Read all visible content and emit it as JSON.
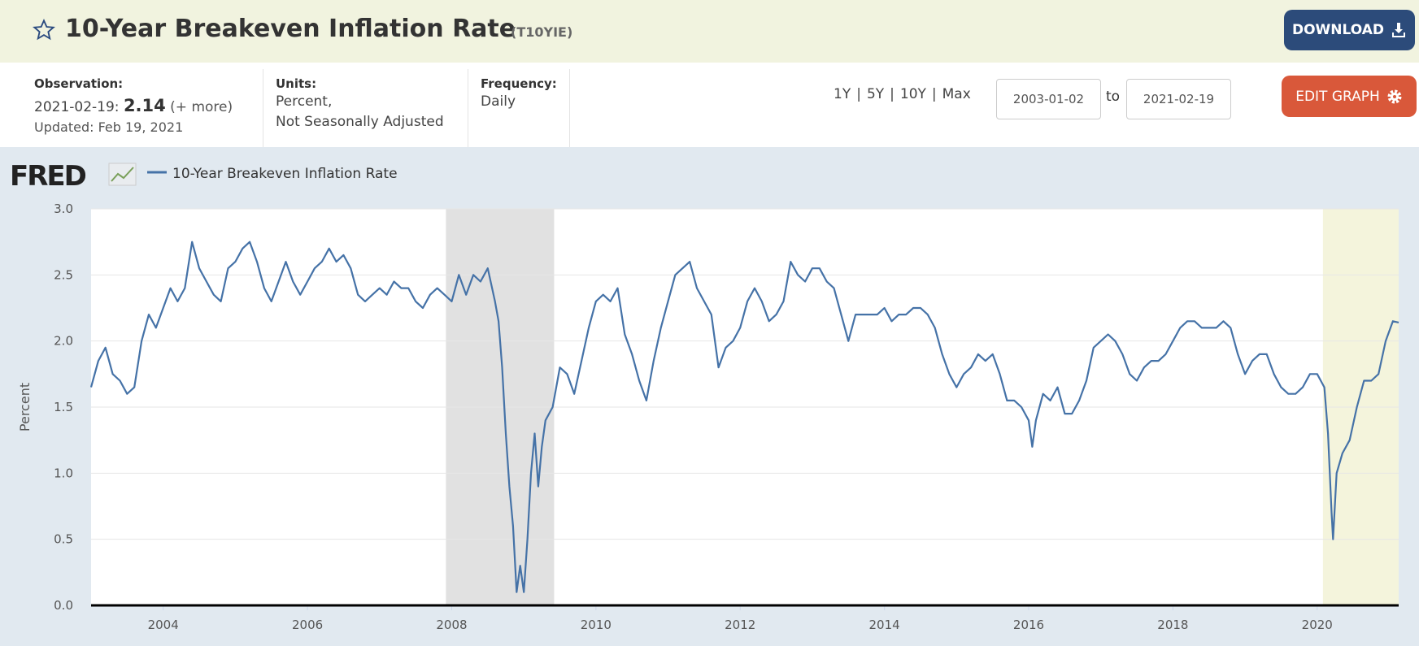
{
  "header": {
    "title": "10-Year Breakeven Inflation Rate",
    "series_id": "(T10YIE)",
    "download": "DOWNLOAD"
  },
  "observation": {
    "label": "Observation:",
    "date": "2021-02-19:",
    "value": 2.14,
    "more": "(+ more)",
    "updated": "Updated: Feb 19, 2021"
  },
  "units": {
    "label": "Units:",
    "line1": "Percent,",
    "line2": "Not Seasonally Adjusted"
  },
  "frequency": {
    "label": "Frequency:",
    "value": "Daily"
  },
  "range": {
    "buttons": [
      "1Y",
      "5Y",
      "10Y",
      "Max"
    ],
    "separator": "|",
    "start": "2003-01-02",
    "to": "to",
    "end": "2021-02-19"
  },
  "edit_graph": "EDIT GRAPH",
  "logo": "FRED",
  "chart_data": {
    "type": "line",
    "y_label": "Percent",
    "xlim": [
      2003.0,
      2021.13
    ],
    "xticks": [
      2004,
      2006,
      2008,
      2010,
      2012,
      2014,
      2016,
      2018,
      2020
    ],
    "ylim": [
      0,
      3
    ],
    "yticks": [
      {
        "value": 0,
        "label": "0.0"
      },
      {
        "value": 0.5,
        "label": "0.5"
      },
      {
        "value": 1,
        "label": "1.0"
      },
      {
        "value": 1.5,
        "label": "1.5"
      },
      {
        "value": 2,
        "label": "2.0"
      },
      {
        "value": 2.5,
        "label": "2.5"
      },
      {
        "value": 3,
        "label": "3.0"
      }
    ],
    "grid": true,
    "recessions": [
      {
        "start": 2007.92,
        "end": 2009.42,
        "color": "#e1e1e1"
      },
      {
        "start": 2020.08,
        "end": 2021.13,
        "color": "#f4f4dc"
      }
    ],
    "series": [
      {
        "name": "10-Year Breakeven Inflation Rate",
        "color": "#4572a7",
        "x": [
          2003.0,
          2003.1,
          2003.2,
          2003.3,
          2003.4,
          2003.5,
          2003.6,
          2003.7,
          2003.8,
          2003.9,
          2004.0,
          2004.1,
          2004.2,
          2004.3,
          2004.4,
          2004.5,
          2004.6,
          2004.7,
          2004.8,
          2004.9,
          2005.0,
          2005.1,
          2005.2,
          2005.3,
          2005.4,
          2005.5,
          2005.6,
          2005.7,
          2005.8,
          2005.9,
          2006.0,
          2006.1,
          2006.2,
          2006.3,
          2006.4,
          2006.5,
          2006.6,
          2006.7,
          2006.8,
          2006.9,
          2007.0,
          2007.1,
          2007.2,
          2007.3,
          2007.4,
          2007.5,
          2007.6,
          2007.7,
          2007.8,
          2007.9,
          2008.0,
          2008.1,
          2008.2,
          2008.3,
          2008.4,
          2008.5,
          2008.6,
          2008.65,
          2008.7,
          2008.75,
          2008.8,
          2008.85,
          2008.9,
          2008.95,
          2009.0,
          2009.05,
          2009.1,
          2009.15,
          2009.2,
          2009.25,
          2009.3,
          2009.4,
          2009.5,
          2009.6,
          2009.7,
          2009.8,
          2009.9,
          2010.0,
          2010.1,
          2010.2,
          2010.3,
          2010.4,
          2010.5,
          2010.6,
          2010.7,
          2010.8,
          2010.9,
          2011.0,
          2011.1,
          2011.2,
          2011.3,
          2011.4,
          2011.5,
          2011.6,
          2011.7,
          2011.8,
          2011.9,
          2012.0,
          2012.1,
          2012.2,
          2012.3,
          2012.4,
          2012.5,
          2012.6,
          2012.7,
          2012.8,
          2012.9,
          2013.0,
          2013.1,
          2013.2,
          2013.3,
          2013.4,
          2013.5,
          2013.6,
          2013.7,
          2013.8,
          2013.9,
          2014.0,
          2014.1,
          2014.2,
          2014.3,
          2014.4,
          2014.5,
          2014.6,
          2014.7,
          2014.8,
          2014.9,
          2015.0,
          2015.1,
          2015.2,
          2015.3,
          2015.4,
          2015.5,
          2015.6,
          2015.7,
          2015.8,
          2015.9,
          2016.0,
          2016.05,
          2016.1,
          2016.2,
          2016.3,
          2016.4,
          2016.5,
          2016.6,
          2016.7,
          2016.8,
          2016.9,
          2017.0,
          2017.1,
          2017.2,
          2017.3,
          2017.4,
          2017.5,
          2017.6,
          2017.7,
          2017.8,
          2017.9,
          2018.0,
          2018.1,
          2018.2,
          2018.3,
          2018.4,
          2018.5,
          2018.6,
          2018.7,
          2018.8,
          2018.9,
          2019.0,
          2019.1,
          2019.2,
          2019.3,
          2019.4,
          2019.5,
          2019.6,
          2019.7,
          2019.8,
          2019.9,
          2020.0,
          2020.1,
          2020.15,
          2020.2,
          2020.22,
          2020.27,
          2020.35,
          2020.45,
          2020.55,
          2020.65,
          2020.75,
          2020.85,
          2020.95,
          2021.05,
          2021.13
        ],
        "values": [
          1.65,
          1.85,
          1.95,
          1.75,
          1.7,
          1.6,
          1.65,
          2.0,
          2.2,
          2.1,
          2.25,
          2.4,
          2.3,
          2.4,
          2.75,
          2.55,
          2.45,
          2.35,
          2.3,
          2.55,
          2.6,
          2.7,
          2.75,
          2.6,
          2.4,
          2.3,
          2.45,
          2.6,
          2.45,
          2.35,
          2.45,
          2.55,
          2.6,
          2.7,
          2.6,
          2.65,
          2.55,
          2.35,
          2.3,
          2.35,
          2.4,
          2.35,
          2.45,
          2.4,
          2.4,
          2.3,
          2.25,
          2.35,
          2.4,
          2.35,
          2.3,
          2.5,
          2.35,
          2.5,
          2.45,
          2.55,
          2.3,
          2.15,
          1.8,
          1.3,
          0.9,
          0.6,
          0.1,
          0.3,
          0.1,
          0.5,
          1.0,
          1.3,
          0.9,
          1.2,
          1.4,
          1.5,
          1.8,
          1.75,
          1.6,
          1.85,
          2.1,
          2.3,
          2.35,
          2.3,
          2.4,
          2.05,
          1.9,
          1.7,
          1.55,
          1.85,
          2.1,
          2.3,
          2.5,
          2.55,
          2.6,
          2.4,
          2.3,
          2.2,
          1.8,
          1.95,
          2.0,
          2.1,
          2.3,
          2.4,
          2.3,
          2.15,
          2.2,
          2.3,
          2.6,
          2.5,
          2.45,
          2.55,
          2.55,
          2.45,
          2.4,
          2.2,
          2.0,
          2.2,
          2.2,
          2.2,
          2.2,
          2.25,
          2.15,
          2.2,
          2.2,
          2.25,
          2.25,
          2.2,
          2.1,
          1.9,
          1.75,
          1.65,
          1.75,
          1.8,
          1.9,
          1.85,
          1.9,
          1.75,
          1.55,
          1.55,
          1.5,
          1.4,
          1.2,
          1.4,
          1.6,
          1.55,
          1.65,
          1.45,
          1.45,
          1.55,
          1.7,
          1.95,
          2.0,
          2.05,
          2.0,
          1.9,
          1.75,
          1.7,
          1.8,
          1.85,
          1.85,
          1.9,
          2.0,
          2.1,
          2.15,
          2.15,
          2.1,
          2.1,
          2.1,
          2.15,
          2.1,
          1.9,
          1.75,
          1.85,
          1.9,
          1.9,
          1.75,
          1.65,
          1.6,
          1.6,
          1.65,
          1.75,
          1.75,
          1.65,
          1.3,
          0.7,
          0.5,
          1.0,
          1.15,
          1.25,
          1.5,
          1.7,
          1.7,
          1.75,
          2.0,
          2.15,
          2.14
        ]
      }
    ]
  }
}
